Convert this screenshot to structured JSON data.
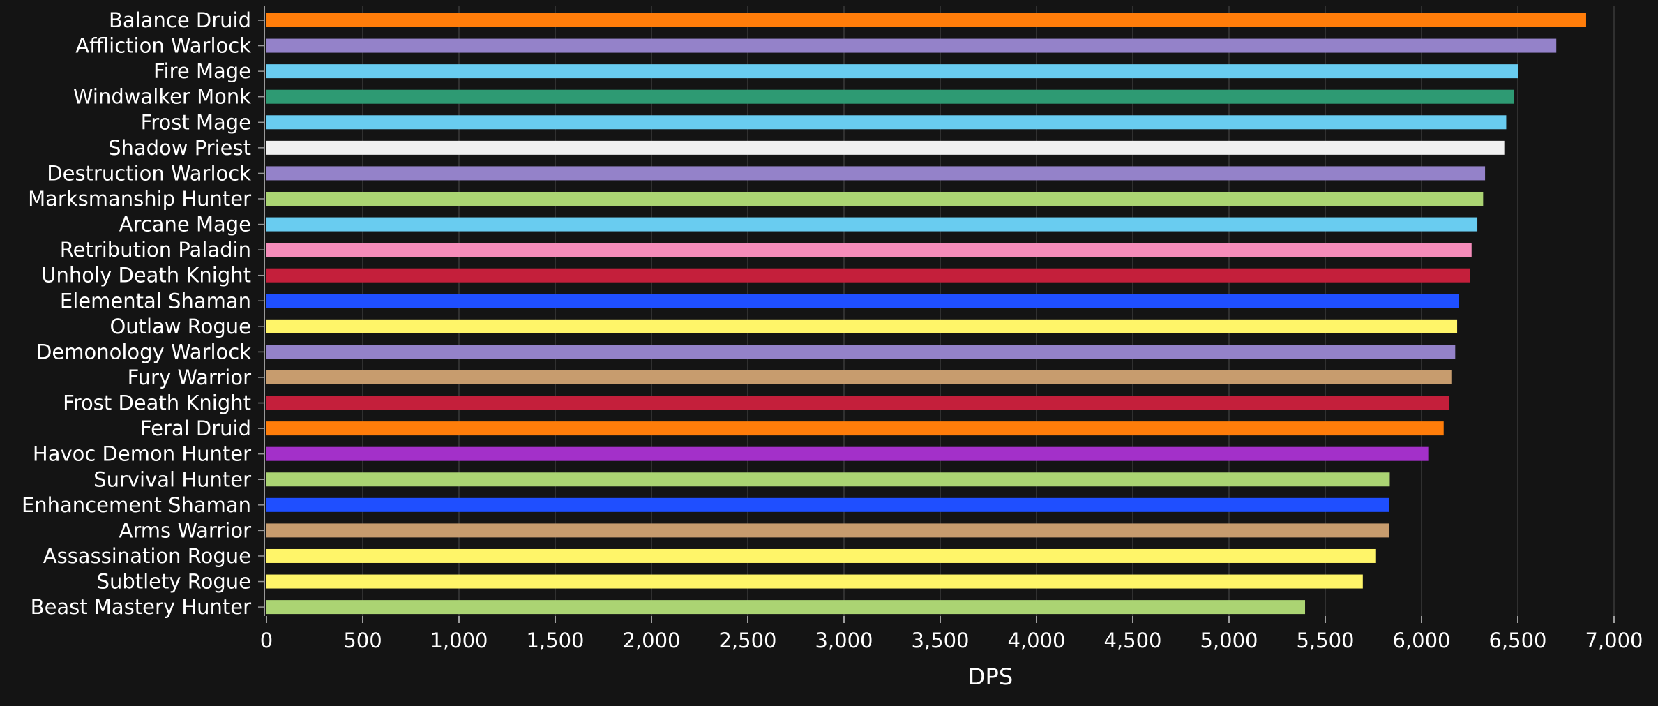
{
  "chart_data": {
    "type": "bar",
    "orientation": "horizontal",
    "xlabel": "DPS",
    "ylabel": "",
    "xlim": [
      0,
      7000
    ],
    "xticks": [
      {
        "value": 0,
        "label": "0"
      },
      {
        "value": 500,
        "label": "500"
      },
      {
        "value": 1000,
        "label": "1,000"
      },
      {
        "value": 1500,
        "label": "1,500"
      },
      {
        "value": 2000,
        "label": "2,000"
      },
      {
        "value": 2500,
        "label": "2,500"
      },
      {
        "value": 3000,
        "label": "3,000"
      },
      {
        "value": 3500,
        "label": "3,500"
      },
      {
        "value": 4000,
        "label": "4,000"
      },
      {
        "value": 4500,
        "label": "4,500"
      },
      {
        "value": 5000,
        "label": "5,000"
      },
      {
        "value": 5500,
        "label": "5,500"
      },
      {
        "value": 6000,
        "label": "6,000"
      },
      {
        "value": 6500,
        "label": "6,500"
      },
      {
        "value": 7000,
        "label": "7,000"
      }
    ],
    "grid": "vertical",
    "categories": [
      "Balance Druid",
      "Affliction Warlock",
      "Fire Mage",
      "Windwalker Monk",
      "Frost Mage",
      "Shadow Priest",
      "Destruction Warlock",
      "Marksmanship Hunter",
      "Arcane Mage",
      "Retribution Paladin",
      "Unholy Death Knight",
      "Elemental Shaman",
      "Outlaw Rogue",
      "Demonology Warlock",
      "Fury Warrior",
      "Frost Death Knight",
      "Feral Druid",
      "Havoc Demon Hunter",
      "Survival Hunter",
      "Enhancement Shaman",
      "Arms Warrior",
      "Assassination Rogue",
      "Subtlety Rogue",
      "Beast Mastery Hunter"
    ],
    "values": [
      6855,
      6700,
      6500,
      6480,
      6440,
      6430,
      6330,
      6320,
      6290,
      6260,
      6250,
      6195,
      6185,
      6175,
      6155,
      6145,
      6115,
      6035,
      5835,
      5830,
      5830,
      5760,
      5695,
      5395
    ],
    "colors": [
      "#ff7d0a",
      "#9482c9",
      "#69ccf0",
      "#2e9a73",
      "#69ccf0",
      "#f0f0f0",
      "#9482c9",
      "#abd473",
      "#69ccf0",
      "#f58cba",
      "#c41f3b",
      "#1f4fff",
      "#fff569",
      "#9482c9",
      "#c79c6e",
      "#c41f3b",
      "#ff7d0a",
      "#a330c9",
      "#abd473",
      "#1f4fff",
      "#c79c6e",
      "#fff569",
      "#fff569",
      "#abd473"
    ]
  }
}
